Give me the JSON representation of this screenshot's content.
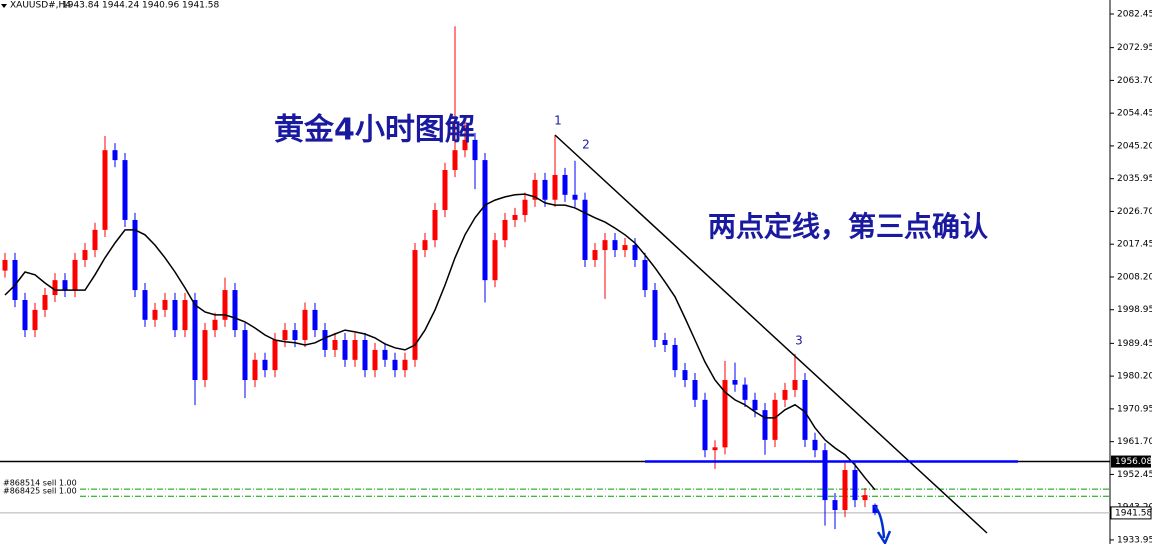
{
  "chart_data": {
    "type": "candlestick",
    "symbol": "XAUUSD#,H4",
    "title": "黄金4小时图解",
    "note": "两点定线，第三点确认",
    "points": [
      "1",
      "2",
      "3"
    ],
    "up_color": "#ff0000",
    "down_color": "#0000ff",
    "ma_color": "#000000",
    "ylim": [
      1932.8,
      2086.4
    ],
    "yticks": [
      2082.45,
      2072.95,
      {
        "value": 2063.7,
        "label": "2063.70"
      },
      2054.45,
      {
        "value": 2045.2,
        "label": "2045.20"
      },
      2035.95,
      {
        "value": 2026.7,
        "label": "2026.70"
      },
      2017.45,
      {
        "value": 2008.2,
        "label": "2008.20"
      },
      1998.95,
      1989.45,
      {
        "value": 1980.2,
        "label": "1980.20"
      },
      1970.95,
      {
        "value": 1961.7,
        "label": "1961.70"
      },
      1952.45,
      {
        "value": 1943.2,
        "label": "1943.20"
      },
      1933.95
    ],
    "level": 1956.08,
    "orders": [
      {
        "label": "#868514 sell 1.00",
        "price": 1948.3
      },
      {
        "label": "#868425 sell 1.00",
        "price": 1946.3
      }
    ],
    "ohlc": [
      [
        2010.0,
        2015.0,
        2008.0,
        2013.0
      ],
      [
        2013.0,
        2015.0,
        1999.7,
        2001.7
      ],
      [
        2001.7,
        2003.7,
        1991.2,
        1993.2
      ],
      [
        1993.2,
        2000.9,
        1991.2,
        1998.9
      ],
      [
        1998.9,
        2005.1,
        1996.9,
        2003.1
      ],
      [
        2003.1,
        2009.3,
        2001.1,
        2007.3
      ],
      [
        2007.3,
        2009.3,
        2002.5,
        2004.5
      ],
      [
        2004.5,
        2015.0,
        2002.5,
        2013.0
      ],
      [
        2013.0,
        2017.8,
        2011.0,
        2015.8
      ],
      [
        2015.8,
        2023.5,
        2013.8,
        2021.5
      ],
      [
        2021.5,
        2048.0,
        2019.5,
        2044.0
      ],
      [
        2044.0,
        2046.0,
        2039.2,
        2041.2
      ],
      [
        2041.2,
        2043.2,
        2022.3,
        2024.3
      ],
      [
        2024.3,
        2026.3,
        2002.5,
        2004.5
      ],
      [
        2004.5,
        2006.5,
        1994.1,
        1996.1
      ],
      [
        1996.1,
        2000.9,
        1994.1,
        1998.9
      ],
      [
        1998.9,
        2003.7,
        1996.9,
        2001.7
      ],
      [
        2001.7,
        2003.7,
        1991.2,
        1993.2
      ],
      [
        1993.2,
        2003.7,
        1991.2,
        2001.7
      ],
      [
        2001.7,
        2003.7,
        1972.0,
        1979.1
      ],
      [
        1979.1,
        1995.2,
        1977.1,
        1993.2
      ],
      [
        1993.2,
        1998.1,
        1991.2,
        1996.1
      ],
      [
        1996.1,
        2008.0,
        1994.1,
        2004.5
      ],
      [
        2004.5,
        2006.5,
        1991.2,
        1993.2
      ],
      [
        1993.2,
        1995.2,
        1974.0,
        1979.1
      ],
      [
        1979.1,
        1986.8,
        1977.1,
        1984.8
      ],
      [
        1984.8,
        1986.8,
        1979.9,
        1981.9
      ],
      [
        1981.9,
        1992.4,
        1979.9,
        1990.4
      ],
      [
        1990.4,
        1995.2,
        1988.4,
        1993.2
      ],
      [
        1993.2,
        1995.2,
        1988.4,
        1990.4
      ],
      [
        1990.4,
        2001.0,
        1988.4,
        1998.9
      ],
      [
        1998.9,
        2000.9,
        1991.2,
        1993.2
      ],
      [
        1993.2,
        1995.2,
        1985.6,
        1987.6
      ],
      [
        1987.6,
        1992.4,
        1985.6,
        1990.4
      ],
      [
        1990.4,
        1992.4,
        1982.8,
        1984.8
      ],
      [
        1984.8,
        1992.4,
        1982.8,
        1990.4
      ],
      [
        1990.4,
        1992.4,
        1979.9,
        1981.9
      ],
      [
        1981.9,
        1989.6,
        1979.9,
        1987.6
      ],
      [
        1987.6,
        1989.6,
        1982.8,
        1984.8
      ],
      [
        1984.8,
        1986.8,
        1979.9,
        1981.9
      ],
      [
        1981.9,
        1986.8,
        1979.9,
        1984.8
      ],
      [
        1984.8,
        2017.8,
        1982.8,
        2015.8
      ],
      [
        2015.8,
        2020.6,
        2013.8,
        2018.6
      ],
      [
        2018.6,
        2029.1,
        2016.6,
        2027.1
      ],
      [
        2027.1,
        2040.4,
        2025.1,
        2038.4
      ],
      [
        2038.4,
        2079.0,
        2036.4,
        2044.0
      ],
      [
        2044.0,
        2053.0,
        2042.0,
        2046.9
      ],
      [
        2046.9,
        2048.9,
        2033.0,
        2041.2
      ],
      [
        2041.2,
        2043.2,
        2001.0,
        2007.3
      ],
      [
        2007.3,
        2020.6,
        2005.3,
        2018.6
      ],
      [
        2018.6,
        2026.3,
        2016.6,
        2024.3
      ],
      [
        2024.3,
        2027.7,
        2022.3,
        2025.7
      ],
      [
        2025.7,
        2032.0,
        2023.7,
        2030.0
      ],
      [
        2030.0,
        2037.6,
        2028.0,
        2035.6
      ],
      [
        2035.6,
        2037.6,
        2028.0,
        2030.0
      ],
      [
        2030.0,
        2048.3,
        2028.0,
        2037.0
      ],
      [
        2037.0,
        2039.0,
        2029.4,
        2031.4
      ],
      [
        2031.4,
        2041.0,
        2028.0,
        2030.0
      ],
      [
        2030.0,
        2032.0,
        2011.0,
        2013.0
      ],
      [
        2013.0,
        2017.8,
        2011.0,
        2015.8
      ],
      [
        2015.8,
        2020.6,
        2002.0,
        2018.6
      ],
      [
        2018.6,
        2020.6,
        2013.8,
        2015.8
      ],
      [
        2015.8,
        2019.2,
        2013.8,
        2017.2
      ],
      [
        2017.2,
        2019.2,
        2011.0,
        2013.0
      ],
      [
        2013.0,
        2015.0,
        2002.5,
        2004.5
      ],
      [
        2004.5,
        2006.5,
        1988.4,
        1990.4
      ],
      [
        1990.4,
        1992.4,
        1987.0,
        1989.0
      ],
      [
        1989.0,
        1991.0,
        1979.9,
        1981.9
      ],
      [
        1981.9,
        1983.9,
        1977.1,
        1979.1
      ],
      [
        1979.1,
        1981.1,
        1971.5,
        1973.5
      ],
      [
        1973.5,
        1975.5,
        1957.3,
        1959.3
      ],
      [
        1959.3,
        1962.1,
        1954.0,
        1960.1
      ],
      [
        1960.1,
        1984.5,
        1958.1,
        1979.1
      ],
      [
        1979.1,
        1984.0,
        1975.8,
        1977.8
      ],
      [
        1977.8,
        1979.8,
        1971.5,
        1973.5
      ],
      [
        1973.5,
        1975.5,
        1968.6,
        1970.6
      ],
      [
        1970.6,
        1972.6,
        1958.0,
        1962.2
      ],
      [
        1962.2,
        1975.5,
        1960.2,
        1973.5
      ],
      [
        1973.5,
        1978.3,
        1971.5,
        1976.3
      ],
      [
        1976.3,
        1986.5,
        1974.3,
        1979.1
      ],
      [
        1979.1,
        1981.1,
        1960.2,
        1962.2
      ],
      [
        1962.2,
        1964.2,
        1957.3,
        1959.3
      ],
      [
        1959.3,
        1961.3,
        1938.0,
        1945.2
      ],
      [
        1945.2,
        1947.2,
        1937.0,
        1942.4
      ],
      [
        1942.4,
        1955.7,
        1940.4,
        1953.7
      ],
      [
        1953.7,
        1955.7,
        1943.2,
        1945.2
      ],
      [
        1945.2,
        1948.6,
        1943.2,
        1946.6
      ],
      [
        1943.84,
        1944.24,
        1940.96,
        1941.58
      ]
    ],
    "ma": [
      2003.1,
      2005.9,
      2009.6,
      2008.8,
      2006.5,
      2004.5,
      2004.5,
      2004.5,
      2004.5,
      2008.8,
      2013.6,
      2017.8,
      2021.5,
      2021.5,
      2020.1,
      2017.2,
      2013.6,
      2009.6,
      2005.1,
      2000.3,
      1998.3,
      1997.5,
      1997.5,
      1996.6,
      1995.5,
      1993.8,
      1991.8,
      1990.4,
      1989.9,
      1989.6,
      1989.0,
      1989.6,
      1991.0,
      1992.1,
      1993.2,
      1992.7,
      1992.1,
      1991.0,
      1989.3,
      1988.2,
      1987.6,
      1989.0,
      1993.2,
      1998.9,
      2005.9,
      2013.6,
      2020.1,
      2024.9,
      2028.5,
      2029.9,
      2030.8,
      2031.4,
      2031.6,
      2030.8,
      2029.1,
      2028.5,
      2028.5,
      2027.7,
      2026.3,
      2024.9,
      2023.7,
      2022.0,
      2020.1,
      2017.8,
      2014.4,
      2010.8,
      2006.8,
      2002.6,
      1996.6,
      1990.4,
      1984.2,
      1979.1,
      1975.7,
      1973.5,
      1972.1,
      1970.1,
      1968.4,
      1968.4,
      1970.7,
      1972.1,
      1970.1,
      1965.6,
      1962.2,
      1959.9,
      1958.0,
      1955.1,
      1951.5,
      1948.1
    ]
  }
}
